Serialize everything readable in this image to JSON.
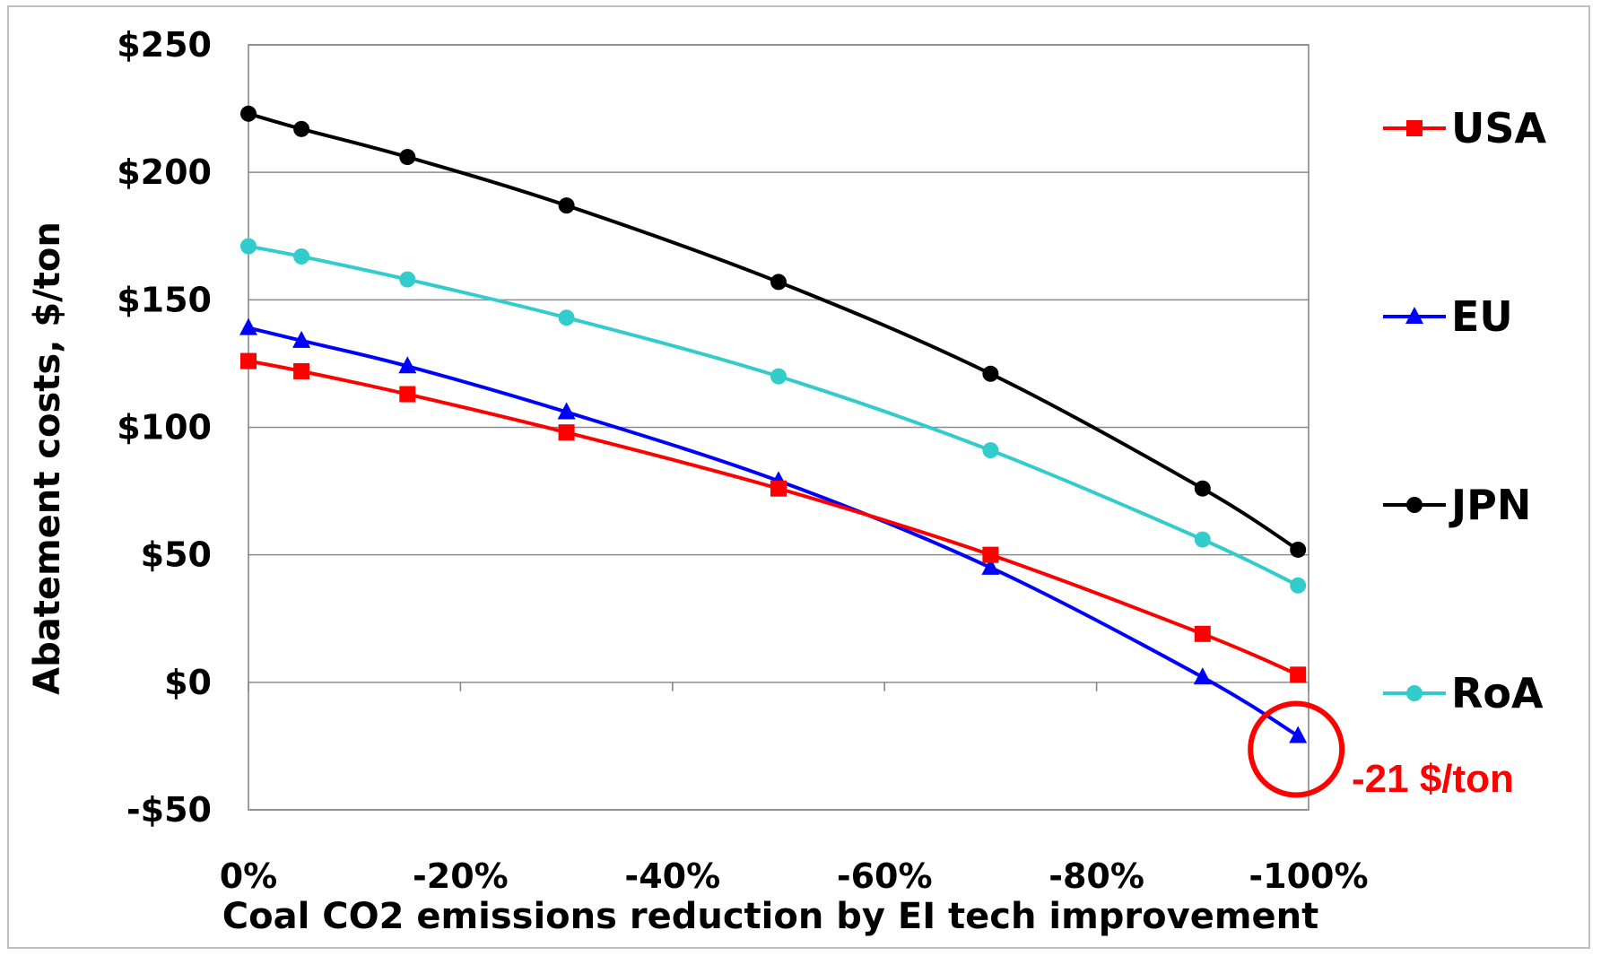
{
  "chart_data": {
    "type": "line",
    "title": "",
    "xlabel": "Coal CO2 emissions reduction by EI  tech improvement",
    "ylabel": "Abatement costs, $/ton",
    "x": [
      0,
      -5,
      -15,
      -30,
      -50,
      -70,
      -90,
      -99
    ],
    "xlim": [
      0,
      -100
    ],
    "ylim": [
      -50,
      250
    ],
    "x_ticks": [
      0,
      -20,
      -40,
      -60,
      -80,
      -100
    ],
    "x_tick_labels": [
      "0%",
      "-20%",
      "-40%",
      "-60%",
      "-80%",
      "-100%"
    ],
    "y_ticks": [
      250,
      200,
      150,
      100,
      50,
      0,
      -50
    ],
    "y_tick_labels": [
      "$250",
      "$200",
      "$150",
      "$100",
      "$50",
      "$0",
      "-$50"
    ],
    "grid": "horizontal",
    "legend_position": "right",
    "series": [
      {
        "name": "USA",
        "color": "#ff0000",
        "marker": "square",
        "values": [
          126,
          122,
          113,
          98,
          76,
          50,
          19,
          3
        ]
      },
      {
        "name": "EU",
        "color": "#0000ff",
        "marker": "triangle",
        "values": [
          139,
          134,
          124,
          106,
          79,
          45,
          2,
          -21
        ]
      },
      {
        "name": "JPN",
        "color": "#000000",
        "marker": "circle",
        "values": [
          223,
          217,
          206,
          187,
          157,
          121,
          76,
          52
        ]
      },
      {
        "name": "RoA",
        "color": "#33cccc",
        "marker": "circle",
        "values": [
          171,
          167,
          158,
          143,
          120,
          91,
          56,
          38
        ]
      }
    ],
    "annotation": {
      "text": "-21 $/ton",
      "color": "#ff0000",
      "x": -99,
      "y": -21
    }
  }
}
